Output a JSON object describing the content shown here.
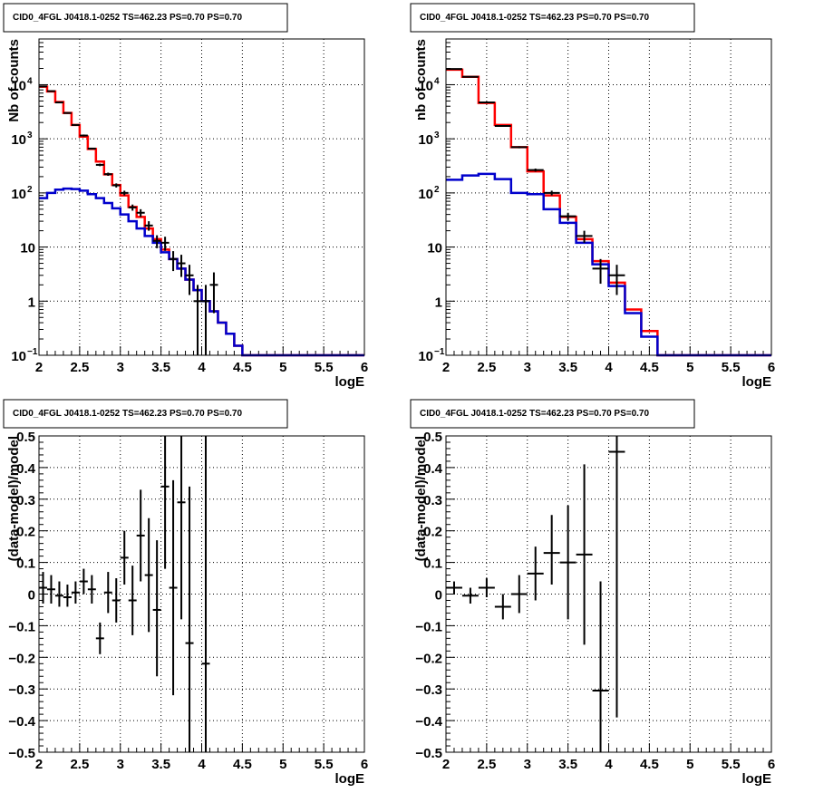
{
  "colors": {
    "data": "#000000",
    "total_model": "#ff0000",
    "component_model": "#0000cc"
  },
  "chart_data": [
    {
      "type": "histogram",
      "title": "CID0_4FGL J0418.1-0252 TS=462.23 PS=0.70 PS=0.70",
      "xlabel": "logE",
      "ylabel": "Nb of counts",
      "xlim": [
        2,
        6
      ],
      "ylim": [
        0.1,
        70000
      ],
      "yscale": "log",
      "grid": true,
      "xticks": [
        "2",
        "2.5",
        "3",
        "3.5",
        "4",
        "4.5",
        "5",
        "5.5",
        "6"
      ],
      "yticks": [
        {
          "v": 0.1,
          "label": "10",
          "sup": "−1"
        },
        {
          "v": 1,
          "label": "1"
        },
        {
          "v": 10,
          "label": "10"
        },
        {
          "v": 100,
          "label": "10",
          "sup": "2"
        },
        {
          "v": 1000,
          "label": "10",
          "sup": "3"
        },
        {
          "v": 10000,
          "label": "10",
          "sup": "4"
        }
      ],
      "bin_edges": [
        2.0,
        2.1,
        2.2,
        2.3,
        2.4,
        2.5,
        2.6,
        2.7,
        2.8,
        2.9,
        3.0,
        3.1,
        3.2,
        3.3,
        3.4,
        3.5,
        3.6,
        3.7,
        3.8,
        3.9,
        4.0,
        4.1,
        4.2,
        4.3,
        4.4,
        4.5,
        6.0
      ],
      "series": [
        {
          "name": "total model",
          "color": "total_model",
          "values": [
            9200,
            7500,
            4800,
            3000,
            1800,
            1100,
            650,
            380,
            220,
            140,
            90,
            55,
            36,
            22,
            14,
            9,
            6,
            4,
            2.5,
            1.6,
            1.0,
            0.65,
            0.4,
            0.25,
            0.15,
            0.1
          ]
        },
        {
          "name": "component model",
          "color": "component_model",
          "values": [
            80,
            100,
            115,
            120,
            118,
            110,
            95,
            80,
            65,
            52,
            40,
            30,
            22,
            16,
            12,
            8,
            6,
            4,
            2.5,
            1.6,
            1.0,
            0.65,
            0.4,
            0.25,
            0.15,
            0.1
          ]
        }
      ],
      "points": [
        {
          "x": 2.05,
          "y": 9300,
          "xerr": 0.05,
          "ylo": 9100,
          "yhi": 9500
        },
        {
          "x": 2.15,
          "y": 7600,
          "xerr": 0.05,
          "ylo": 7400,
          "yhi": 7800
        },
        {
          "x": 2.25,
          "y": 4700,
          "xerr": 0.05,
          "ylo": 4550,
          "yhi": 4850
        },
        {
          "x": 2.35,
          "y": 3000,
          "xerr": 0.05,
          "ylo": 2900,
          "yhi": 3100
        },
        {
          "x": 2.45,
          "y": 1800,
          "xerr": 0.05,
          "ylo": 1740,
          "yhi": 1860
        },
        {
          "x": 2.55,
          "y": 1150,
          "xerr": 0.05,
          "ylo": 1100,
          "yhi": 1200
        },
        {
          "x": 2.65,
          "y": 660,
          "xerr": 0.05,
          "ylo": 635,
          "yhi": 685
        },
        {
          "x": 2.75,
          "y": 330,
          "xerr": 0.05,
          "ylo": 312,
          "yhi": 348
        },
        {
          "x": 2.85,
          "y": 222,
          "xerr": 0.05,
          "ylo": 207,
          "yhi": 237
        },
        {
          "x": 2.95,
          "y": 138,
          "xerr": 0.05,
          "ylo": 126,
          "yhi": 150
        },
        {
          "x": 3.05,
          "y": 100,
          "xerr": 0.05,
          "ylo": 90,
          "yhi": 110
        },
        {
          "x": 3.15,
          "y": 54,
          "xerr": 0.05,
          "ylo": 47,
          "yhi": 61
        },
        {
          "x": 3.25,
          "y": 43,
          "xerr": 0.05,
          "ylo": 36,
          "yhi": 50
        },
        {
          "x": 3.35,
          "y": 25,
          "xerr": 0.05,
          "ylo": 20,
          "yhi": 30
        },
        {
          "x": 3.45,
          "y": 13,
          "xerr": 0.05,
          "ylo": 9.5,
          "yhi": 16.5
        },
        {
          "x": 3.55,
          "y": 12,
          "xerr": 0.05,
          "ylo": 8.5,
          "yhi": 15.5
        },
        {
          "x": 3.65,
          "y": 6,
          "xerr": 0.05,
          "ylo": 3.6,
          "yhi": 8.4
        },
        {
          "x": 3.75,
          "y": 5,
          "xerr": 0.05,
          "ylo": 2.8,
          "yhi": 7.2
        },
        {
          "x": 3.85,
          "y": 3,
          "xerr": 0.05,
          "ylo": 1.3,
          "yhi": 4.7
        },
        {
          "x": 3.95,
          "y": 1,
          "xerr": 0.05,
          "ylo": 0.1,
          "yhi": 2
        },
        {
          "x": 4.05,
          "y": 1,
          "xerr": 0.05,
          "ylo": 0.1,
          "yhi": 2
        },
        {
          "x": 4.15,
          "y": 2,
          "xerr": 0.05,
          "ylo": 0.6,
          "yhi": 3.4
        }
      ]
    },
    {
      "type": "histogram",
      "title": "CID0_4FGL J0418.1-0252 TS=462.23 PS=0.70 PS=0.70",
      "xlabel": "logE",
      "ylabel": "nb of counts",
      "xlim": [
        2,
        6
      ],
      "ylim": [
        0.1,
        70000
      ],
      "yscale": "log",
      "grid": true,
      "xticks": [
        "2",
        "2.5",
        "3",
        "3.5",
        "4",
        "4.5",
        "5",
        "5.5",
        "6"
      ],
      "yticks": [
        {
          "v": 0.1,
          "label": "10",
          "sup": "−1"
        },
        {
          "v": 1,
          "label": "1"
        },
        {
          "v": 10,
          "label": "10"
        },
        {
          "v": 100,
          "label": "10",
          "sup": "2"
        },
        {
          "v": 1000,
          "label": "10",
          "sup": "3"
        },
        {
          "v": 10000,
          "label": "10",
          "sup": "4"
        }
      ],
      "bin_edges": [
        2.0,
        2.2,
        2.4,
        2.6,
        2.8,
        3.0,
        3.2,
        3.4,
        3.6,
        3.8,
        4.0,
        4.2,
        4.4,
        4.6,
        6.0
      ],
      "series": [
        {
          "name": "total model",
          "color": "total_model",
          "values": [
            19000,
            14000,
            4600,
            1800,
            700,
            250,
            90,
            36,
            14,
            5.5,
            2.2,
            0.7,
            0.28,
            0.1
          ]
        },
        {
          "name": "component model",
          "color": "component_model",
          "values": [
            175,
            210,
            225,
            180,
            100,
            95,
            50,
            28,
            12,
            4.8,
            1.9,
            0.6,
            0.22,
            0.1
          ]
        }
      ],
      "points": [
        {
          "x": 2.1,
          "y": 19500,
          "xerr": 0.1,
          "ylo": 19200,
          "yhi": 19800
        },
        {
          "x": 2.3,
          "y": 14000,
          "xerr": 0.1,
          "ylo": 13750,
          "yhi": 14250
        },
        {
          "x": 2.5,
          "y": 4700,
          "xerr": 0.1,
          "ylo": 4550,
          "yhi": 4850
        },
        {
          "x": 2.7,
          "y": 1730,
          "xerr": 0.1,
          "ylo": 1670,
          "yhi": 1790
        },
        {
          "x": 2.9,
          "y": 700,
          "xerr": 0.1,
          "ylo": 670,
          "yhi": 730
        },
        {
          "x": 3.1,
          "y": 265,
          "xerr": 0.1,
          "ylo": 248,
          "yhi": 282
        },
        {
          "x": 3.3,
          "y": 100,
          "xerr": 0.1,
          "ylo": 90,
          "yhi": 110
        },
        {
          "x": 3.5,
          "y": 37,
          "xerr": 0.1,
          "ylo": 31,
          "yhi": 43
        },
        {
          "x": 3.7,
          "y": 16,
          "xerr": 0.1,
          "ylo": 12,
          "yhi": 20
        },
        {
          "x": 3.9,
          "y": 4,
          "xerr": 0.1,
          "ylo": 2.1,
          "yhi": 6
        },
        {
          "x": 4.1,
          "y": 3,
          "xerr": 0.1,
          "ylo": 1.3,
          "yhi": 4.7
        }
      ]
    },
    {
      "type": "scatter",
      "title": "CID0_4FGL J0418.1-0252 TS=462.23 PS=0.70 PS=0.70",
      "xlabel": "logE",
      "ylabel": "(data-model)/model",
      "xlim": [
        2,
        6
      ],
      "ylim": [
        -0.5,
        0.5
      ],
      "yscale": "linear",
      "grid": true,
      "xticks": [
        "2",
        "2.5",
        "3",
        "3.5",
        "4",
        "4.5",
        "5",
        "5.5",
        "6"
      ],
      "yticks": [
        {
          "v": -0.5,
          "label": "−0.5"
        },
        {
          "v": -0.4,
          "label": "−0.4"
        },
        {
          "v": -0.3,
          "label": "−0.3"
        },
        {
          "v": -0.2,
          "label": "−0.2"
        },
        {
          "v": -0.1,
          "label": "−0.1"
        },
        {
          "v": 0,
          "label": "0"
        },
        {
          "v": 0.1,
          "label": "0.1"
        },
        {
          "v": 0.2,
          "label": "0.2"
        },
        {
          "v": 0.3,
          "label": "0.3"
        },
        {
          "v": 0.4,
          "label": "0.4"
        },
        {
          "v": 0.5,
          "label": "0.5"
        }
      ],
      "points": [
        {
          "x": 2.05,
          "y": 0.02,
          "xerr": 0.05,
          "ylo": -0.03,
          "yhi": 0.07
        },
        {
          "x": 2.15,
          "y": 0.015,
          "xerr": 0.05,
          "ylo": -0.03,
          "yhi": 0.06
        },
        {
          "x": 2.25,
          "y": -0.005,
          "xerr": 0.05,
          "ylo": -0.04,
          "yhi": 0.04
        },
        {
          "x": 2.35,
          "y": -0.01,
          "xerr": 0.05,
          "ylo": -0.04,
          "yhi": 0.03
        },
        {
          "x": 2.45,
          "y": 0.005,
          "xerr": 0.05,
          "ylo": -0.03,
          "yhi": 0.04
        },
        {
          "x": 2.55,
          "y": 0.04,
          "xerr": 0.05,
          "ylo": 0.0,
          "yhi": 0.08
        },
        {
          "x": 2.65,
          "y": 0.015,
          "xerr": 0.05,
          "ylo": -0.03,
          "yhi": 0.06
        },
        {
          "x": 2.75,
          "y": -0.14,
          "xerr": 0.05,
          "ylo": -0.19,
          "yhi": -0.09
        },
        {
          "x": 2.85,
          "y": 0.005,
          "xerr": 0.05,
          "ylo": -0.06,
          "yhi": 0.07
        },
        {
          "x": 2.95,
          "y": -0.02,
          "xerr": 0.05,
          "ylo": -0.09,
          "yhi": 0.05
        },
        {
          "x": 3.05,
          "y": 0.115,
          "xerr": 0.05,
          "ylo": 0.03,
          "yhi": 0.2
        },
        {
          "x": 3.15,
          "y": -0.02,
          "xerr": 0.05,
          "ylo": -0.13,
          "yhi": 0.09
        },
        {
          "x": 3.25,
          "y": 0.185,
          "xerr": 0.05,
          "ylo": 0.04,
          "yhi": 0.33
        },
        {
          "x": 3.35,
          "y": 0.06,
          "xerr": 0.05,
          "ylo": -0.12,
          "yhi": 0.24
        },
        {
          "x": 3.45,
          "y": -0.05,
          "xerr": 0.05,
          "ylo": -0.26,
          "yhi": 0.17
        },
        {
          "x": 3.55,
          "y": 0.34,
          "xerr": 0.05,
          "ylo": 0.08,
          "yhi": 0.5
        },
        {
          "x": 3.65,
          "y": 0.02,
          "xerr": 0.05,
          "ylo": -0.32,
          "yhi": 0.36
        },
        {
          "x": 3.75,
          "y": 0.29,
          "xerr": 0.05,
          "ylo": -0.08,
          "yhi": 0.5
        },
        {
          "x": 3.85,
          "y": -0.155,
          "xerr": 0.05,
          "ylo": -0.5,
          "yhi": 0.34
        },
        {
          "x": 4.05,
          "y": -0.22,
          "xerr": 0.05,
          "ylo": -0.5,
          "yhi": 0.5
        }
      ]
    },
    {
      "type": "scatter",
      "title": "CID0_4FGL J0418.1-0252 TS=462.23 PS=0.70 PS=0.70",
      "xlabel": "logE",
      "ylabel": "(data-model)/model",
      "xlim": [
        2,
        6
      ],
      "ylim": [
        -0.5,
        0.5
      ],
      "yscale": "linear",
      "grid": true,
      "xticks": [
        "2",
        "2.5",
        "3",
        "3.5",
        "4",
        "4.5",
        "5",
        "5.5",
        "6"
      ],
      "yticks": [
        {
          "v": -0.5,
          "label": "−0.5"
        },
        {
          "v": -0.4,
          "label": "−0.4"
        },
        {
          "v": -0.3,
          "label": "−0.3"
        },
        {
          "v": -0.2,
          "label": "−0.2"
        },
        {
          "v": -0.1,
          "label": "−0.1"
        },
        {
          "v": 0,
          "label": "0"
        },
        {
          "v": 0.1,
          "label": "0.1"
        },
        {
          "v": 0.2,
          "label": "0.2"
        },
        {
          "v": 0.3,
          "label": "0.3"
        },
        {
          "v": 0.4,
          "label": "0.4"
        },
        {
          "v": 0.5,
          "label": "0.5"
        }
      ],
      "points": [
        {
          "x": 2.1,
          "y": 0.02,
          "xerr": 0.1,
          "ylo": 0.0,
          "yhi": 0.04
        },
        {
          "x": 2.3,
          "y": -0.005,
          "xerr": 0.1,
          "ylo": -0.03,
          "yhi": 0.02
        },
        {
          "x": 2.5,
          "y": 0.02,
          "xerr": 0.1,
          "ylo": -0.01,
          "yhi": 0.05
        },
        {
          "x": 2.7,
          "y": -0.04,
          "xerr": 0.1,
          "ylo": -0.08,
          "yhi": 0.0
        },
        {
          "x": 2.9,
          "y": 0.0,
          "xerr": 0.1,
          "ylo": -0.06,
          "yhi": 0.06
        },
        {
          "x": 3.1,
          "y": 0.065,
          "xerr": 0.1,
          "ylo": -0.02,
          "yhi": 0.15
        },
        {
          "x": 3.3,
          "y": 0.13,
          "xerr": 0.1,
          "ylo": 0.03,
          "yhi": 0.25
        },
        {
          "x": 3.5,
          "y": 0.1,
          "xerr": 0.1,
          "ylo": -0.08,
          "yhi": 0.28
        },
        {
          "x": 3.7,
          "y": 0.125,
          "xerr": 0.1,
          "ylo": -0.16,
          "yhi": 0.41
        },
        {
          "x": 3.9,
          "y": -0.305,
          "xerr": 0.1,
          "ylo": -0.5,
          "yhi": 0.04
        },
        {
          "x": 4.1,
          "y": 0.45,
          "xerr": 0.1,
          "ylo": -0.39,
          "yhi": 0.5
        }
      ]
    }
  ]
}
